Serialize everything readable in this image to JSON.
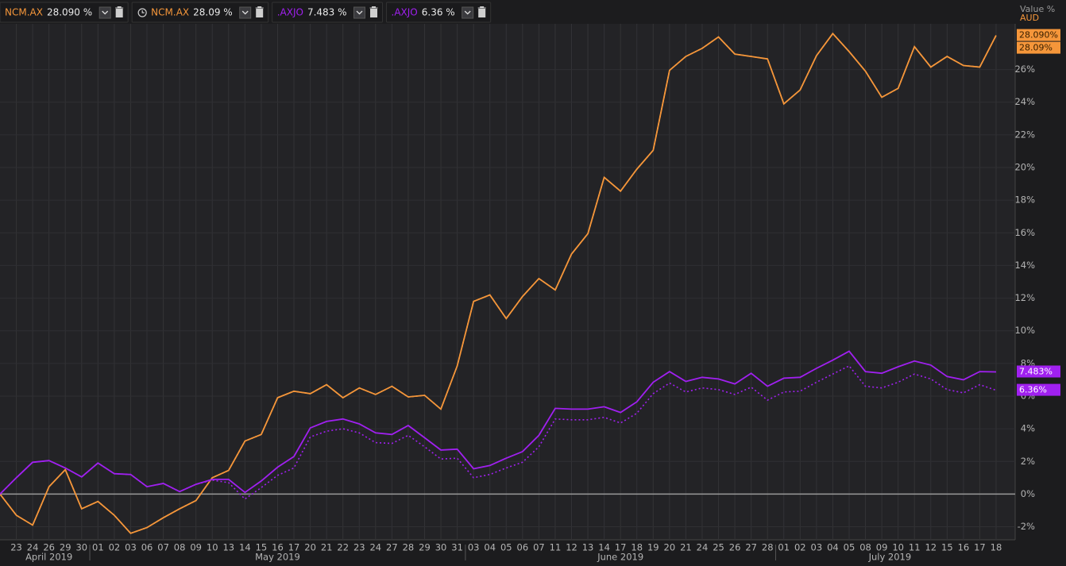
{
  "chart_data": {
    "type": "line",
    "axis_title": "Value %",
    "currency": "AUD",
    "categories": [
      null,
      "23",
      "24",
      "26",
      "29",
      "30",
      "01",
      "02",
      "03",
      "06",
      "07",
      "08",
      "09",
      "10",
      "13",
      "14",
      "15",
      "16",
      "17",
      "20",
      "21",
      "22",
      "23",
      "24",
      "27",
      "28",
      "29",
      "30",
      "31",
      "03",
      "04",
      "05",
      "06",
      "07",
      "11",
      "12",
      "13",
      "14",
      "17",
      "18",
      "19",
      "20",
      "21",
      "24",
      "25",
      "26",
      "27",
      "28",
      "01",
      "02",
      "03",
      "04",
      "05",
      "08",
      "09",
      "10",
      "11",
      "12",
      "15",
      "16",
      "17",
      "18"
    ],
    "months": [
      "April 2019",
      "May 2019",
      "June 2019",
      "July 2019"
    ],
    "ylim": [
      -2.8,
      28.8
    ],
    "yticks": [
      {
        "value": -2,
        "label": "-2%"
      },
      {
        "value": 0,
        "label": "0%"
      },
      {
        "value": 2,
        "label": "2%"
      },
      {
        "value": 4,
        "label": "4%"
      },
      {
        "value": 6,
        "label": "6%"
      },
      {
        "value": 8,
        "label": "8%"
      },
      {
        "value": 10,
        "label": "10%"
      },
      {
        "value": 12,
        "label": "12%"
      },
      {
        "value": 14,
        "label": "14%"
      },
      {
        "value": 16,
        "label": "16%"
      },
      {
        "value": 18,
        "label": "18%"
      },
      {
        "value": 20,
        "label": "20%"
      },
      {
        "value": 22,
        "label": "22%"
      },
      {
        "value": 24,
        "label": "24%"
      },
      {
        "value": 26,
        "label": "26%"
      }
    ],
    "series": [
      {
        "name": "NCM.AX",
        "legend_value": "28.090 %",
        "tag": "28.090%",
        "color": "#f5963a",
        "dash": "solid",
        "values": [
          0,
          -1.3,
          -1.9,
          0.45,
          1.5,
          -0.9,
          -0.45,
          -1.3,
          -2.4,
          -2.05,
          -1.45,
          -0.9,
          -0.4,
          1.0,
          1.45,
          3.25,
          3.65,
          5.9,
          6.3,
          6.15,
          6.7,
          5.9,
          6.5,
          6.1,
          6.6,
          5.95,
          6.05,
          5.2,
          7.85,
          11.8,
          12.2,
          10.75,
          12.1,
          13.2,
          12.5,
          14.7,
          15.95,
          19.4,
          18.55,
          19.9,
          21.05,
          25.95,
          26.8,
          27.3,
          28.0,
          26.95,
          26.8,
          26.65,
          23.9,
          24.75,
          26.85,
          28.2,
          27.1,
          25.9,
          24.3,
          24.85,
          27.4,
          26.15,
          26.8,
          26.25,
          26.15,
          28.09
        ]
      },
      {
        "name": "NCM.AX",
        "legend_value": "28.09 %",
        "tag": "28.09%",
        "color": "#f5963a",
        "dash": "dotted",
        "clock": true,
        "values": [
          0,
          -1.3,
          -1.9,
          0.45,
          1.5,
          -0.9,
          -0.45,
          -1.3,
          -2.4,
          -2.05,
          -1.45,
          -0.9,
          -0.4,
          1.0,
          1.45,
          3.25,
          3.65,
          5.9,
          6.3,
          6.15,
          6.7,
          5.9,
          6.5,
          6.1,
          6.6,
          5.95,
          6.05,
          5.2,
          7.85,
          11.8,
          12.2,
          10.75,
          12.1,
          13.2,
          12.5,
          14.7,
          15.95,
          19.4,
          18.55,
          19.9,
          21.05,
          25.95,
          26.8,
          27.3,
          28.0,
          26.95,
          26.8,
          26.65,
          23.9,
          24.75,
          26.85,
          28.2,
          27.1,
          25.9,
          24.3,
          24.85,
          27.4,
          26.15,
          26.8,
          26.25,
          26.15,
          28.09
        ]
      },
      {
        "name": ".AXJO",
        "legend_value": "7.483 %",
        "tag": "7.483%",
        "color": "#a020f0",
        "dash": "solid",
        "values": [
          0,
          1.0,
          1.95,
          2.05,
          1.6,
          1.05,
          1.9,
          1.25,
          1.2,
          0.45,
          0.65,
          0.15,
          0.6,
          0.9,
          0.9,
          0.1,
          0.8,
          1.65,
          2.3,
          4.05,
          4.45,
          4.6,
          4.3,
          3.75,
          3.65,
          4.2,
          3.45,
          2.7,
          2.75,
          1.55,
          1.75,
          2.2,
          2.6,
          3.6,
          5.25,
          5.2,
          5.2,
          5.35,
          5.0,
          5.65,
          6.85,
          7.5,
          6.9,
          7.15,
          7.05,
          6.75,
          7.4,
          6.6,
          7.1,
          7.15,
          7.7,
          8.2,
          8.75,
          7.5,
          7.4,
          7.8,
          8.15,
          7.9,
          7.2,
          7.0,
          7.5,
          7.483
        ]
      },
      {
        "name": ".AXJO",
        "legend_value": "6.36 %",
        "tag": "6.36%",
        "color": "#a020f0",
        "dash": "dotted",
        "values": [
          0,
          1.0,
          1.95,
          2.05,
          1.6,
          1.05,
          1.9,
          1.25,
          1.2,
          0.45,
          0.65,
          0.15,
          0.6,
          0.85,
          0.7,
          -0.3,
          0.4,
          1.15,
          1.6,
          3.5,
          3.85,
          4.0,
          3.75,
          3.15,
          3.1,
          3.6,
          2.9,
          2.15,
          2.2,
          1.0,
          1.2,
          1.6,
          1.95,
          2.9,
          4.6,
          4.55,
          4.55,
          4.7,
          4.35,
          4.95,
          6.15,
          6.8,
          6.25,
          6.5,
          6.4,
          6.1,
          6.55,
          5.75,
          6.25,
          6.3,
          6.85,
          7.35,
          7.85,
          6.6,
          6.5,
          6.85,
          7.35,
          7.05,
          6.4,
          6.2,
          6.7,
          6.36
        ]
      }
    ]
  }
}
